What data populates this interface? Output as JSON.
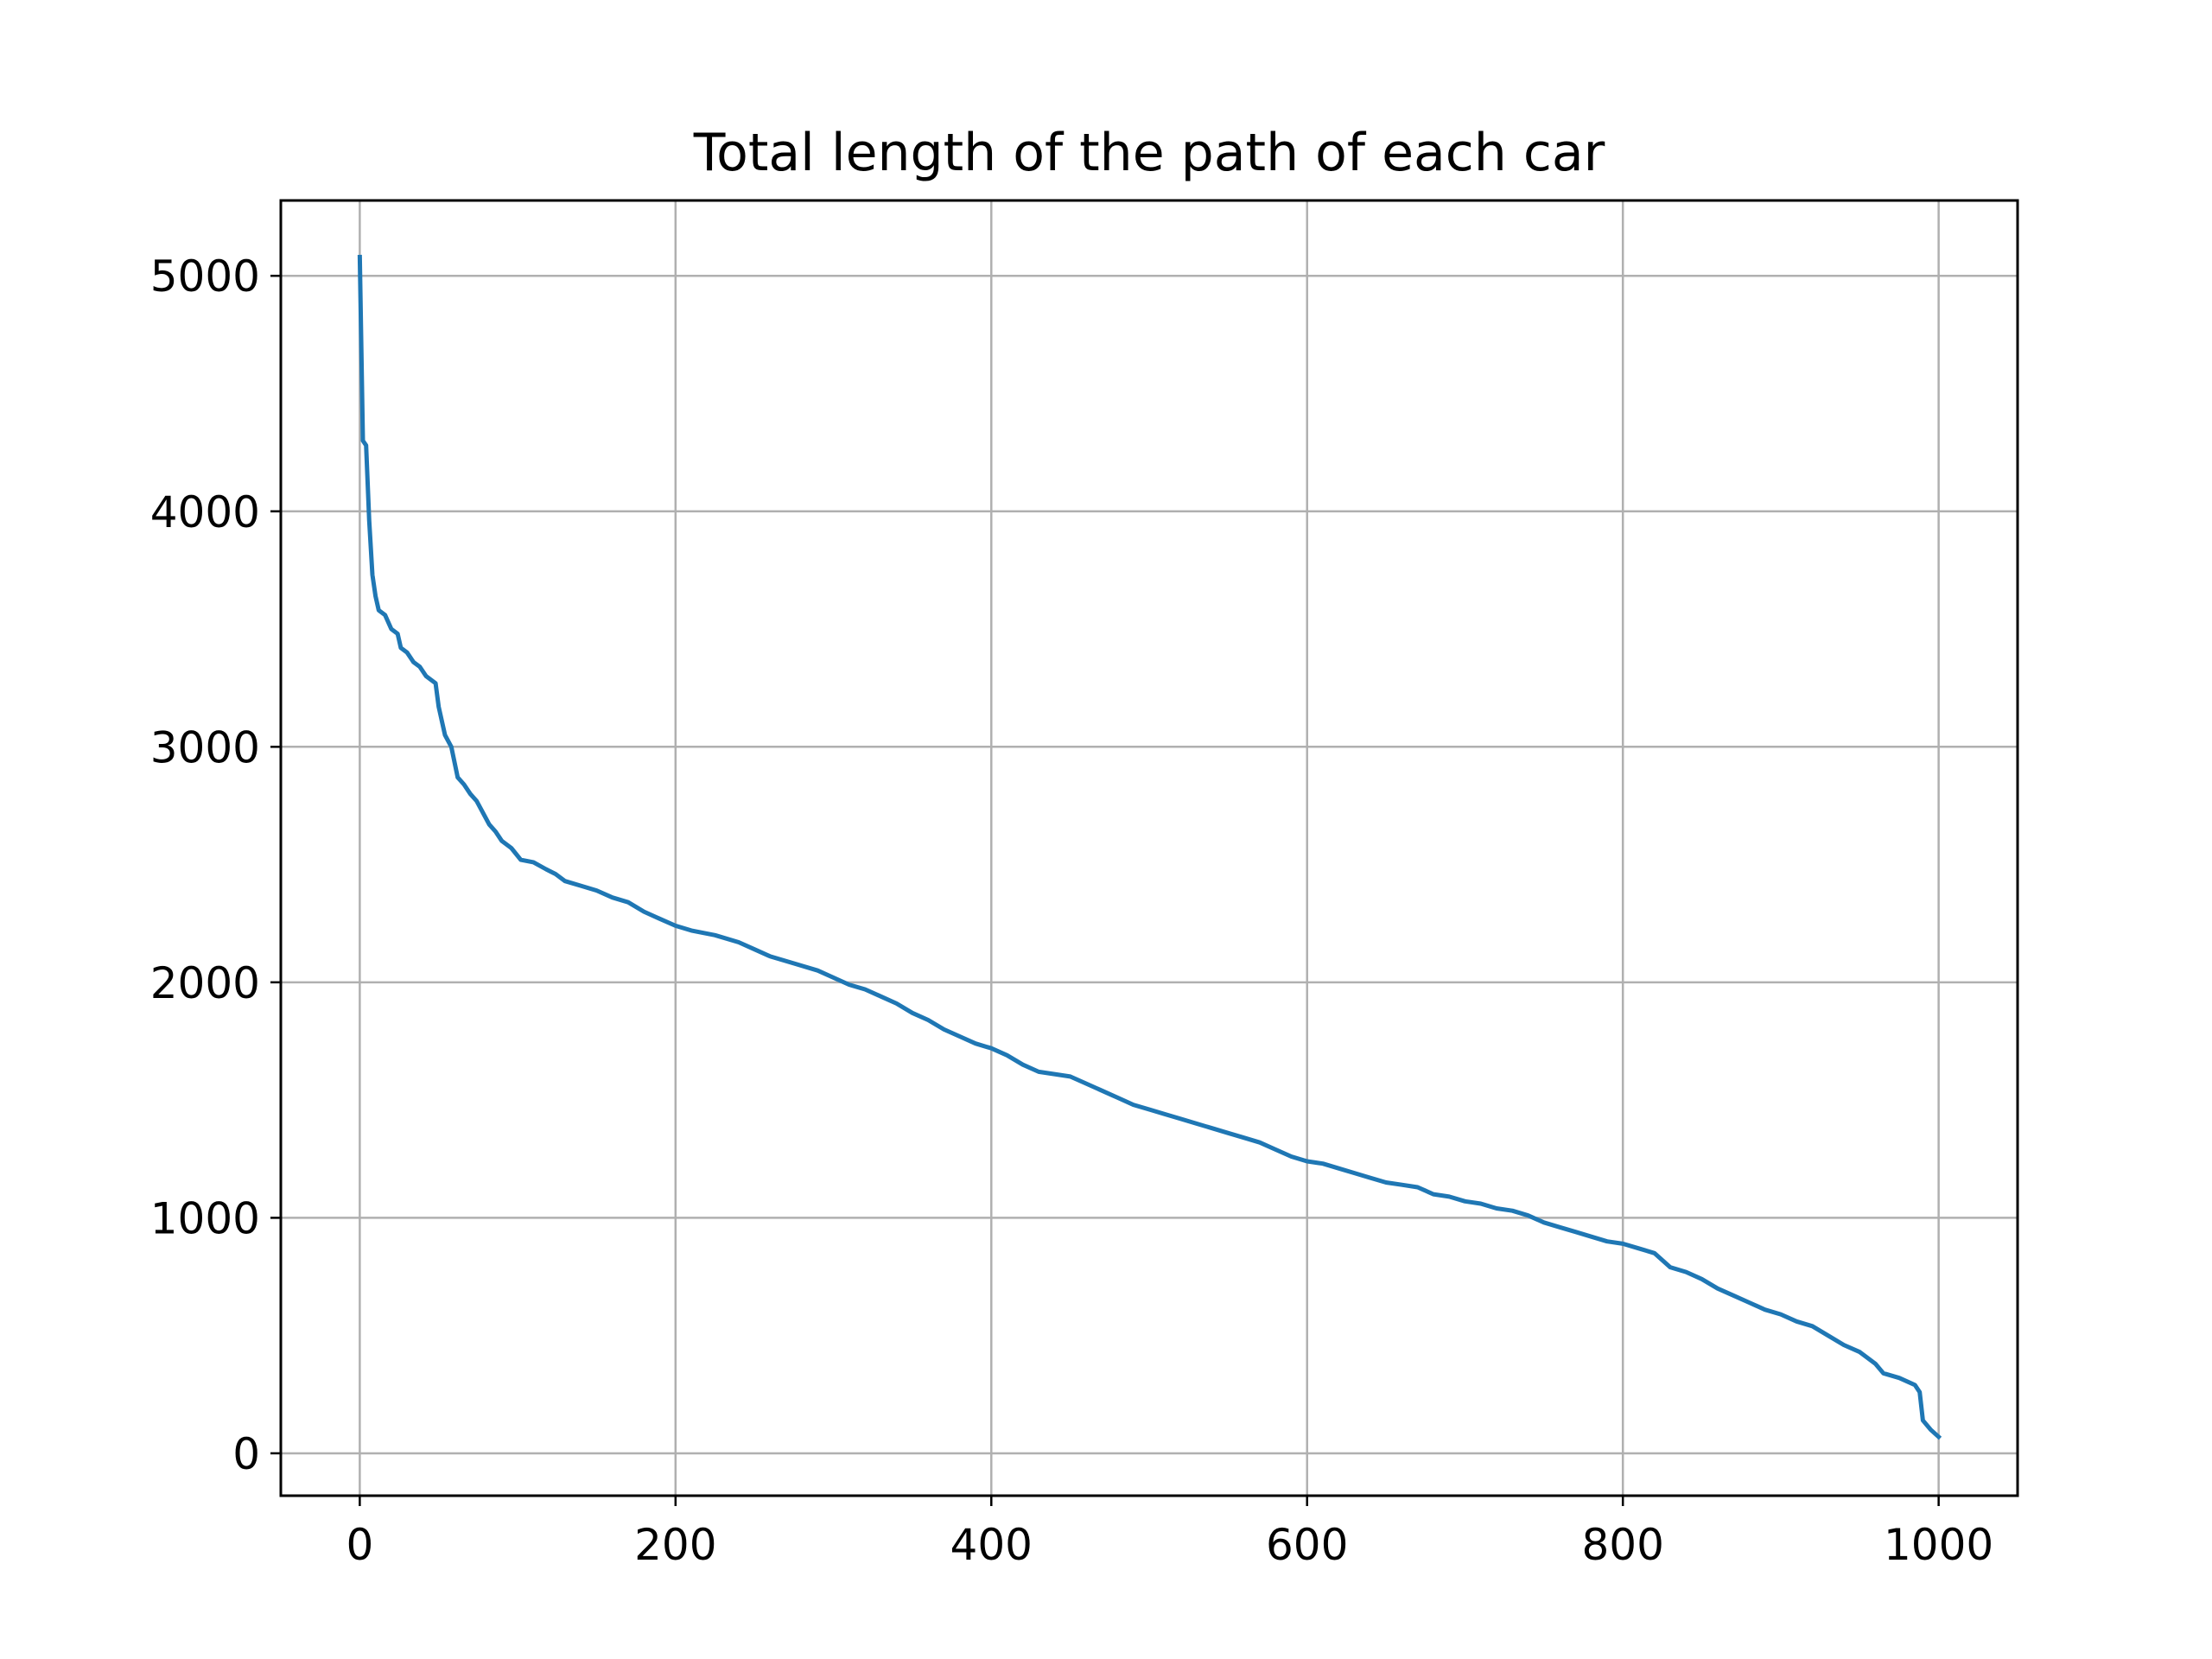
{
  "chart_data": {
    "type": "line",
    "title": "Total length of the path of each car",
    "xlabel": "",
    "ylabel": "",
    "xlim": [
      -50,
      1050
    ],
    "ylim": [
      -180,
      5320
    ],
    "grid": true,
    "xticks": [
      0,
      200,
      400,
      600,
      800,
      1000
    ],
    "yticks": [
      0,
      1000,
      2000,
      3000,
      4000,
      5000
    ],
    "series": [
      {
        "color": "#1f77b4",
        "points": [
          [
            0,
            5080
          ],
          [
            2,
            4300
          ],
          [
            4,
            4280
          ],
          [
            6,
            3960
          ],
          [
            8,
            3730
          ],
          [
            10,
            3640
          ],
          [
            12,
            3580
          ],
          [
            16,
            3560
          ],
          [
            20,
            3500
          ],
          [
            24,
            3480
          ],
          [
            26,
            3420
          ],
          [
            30,
            3400
          ],
          [
            34,
            3360
          ],
          [
            38,
            3340
          ],
          [
            42,
            3300
          ],
          [
            48,
            3270
          ],
          [
            50,
            3170
          ],
          [
            54,
            3050
          ],
          [
            58,
            3000
          ],
          [
            62,
            2870
          ],
          [
            66,
            2840
          ],
          [
            70,
            2800
          ],
          [
            74,
            2770
          ],
          [
            78,
            2720
          ],
          [
            82,
            2670
          ],
          [
            86,
            2640
          ],
          [
            90,
            2600
          ],
          [
            96,
            2570
          ],
          [
            102,
            2520
          ],
          [
            110,
            2510
          ],
          [
            118,
            2480
          ],
          [
            124,
            2460
          ],
          [
            130,
            2430
          ],
          [
            140,
            2410
          ],
          [
            150,
            2390
          ],
          [
            160,
            2360
          ],
          [
            170,
            2340
          ],
          [
            180,
            2300
          ],
          [
            190,
            2270
          ],
          [
            200,
            2240
          ],
          [
            210,
            2220
          ],
          [
            225,
            2200
          ],
          [
            240,
            2170
          ],
          [
            250,
            2140
          ],
          [
            260,
            2110
          ],
          [
            275,
            2080
          ],
          [
            290,
            2050
          ],
          [
            300,
            2020
          ],
          [
            310,
            1990
          ],
          [
            320,
            1970
          ],
          [
            330,
            1940
          ],
          [
            340,
            1910
          ],
          [
            350,
            1870
          ],
          [
            360,
            1840
          ],
          [
            370,
            1800
          ],
          [
            380,
            1770
          ],
          [
            390,
            1740
          ],
          [
            400,
            1720
          ],
          [
            410,
            1690
          ],
          [
            420,
            1650
          ],
          [
            430,
            1620
          ],
          [
            440,
            1610
          ],
          [
            450,
            1600
          ],
          [
            460,
            1570
          ],
          [
            470,
            1540
          ],
          [
            480,
            1510
          ],
          [
            490,
            1480
          ],
          [
            500,
            1460
          ],
          [
            510,
            1440
          ],
          [
            520,
            1420
          ],
          [
            530,
            1400
          ],
          [
            540,
            1380
          ],
          [
            550,
            1360
          ],
          [
            560,
            1340
          ],
          [
            570,
            1320
          ],
          [
            580,
            1290
          ],
          [
            590,
            1260
          ],
          [
            600,
            1240
          ],
          [
            610,
            1230
          ],
          [
            620,
            1210
          ],
          [
            630,
            1190
          ],
          [
            640,
            1170
          ],
          [
            650,
            1150
          ],
          [
            660,
            1140
          ],
          [
            670,
            1130
          ],
          [
            680,
            1100
          ],
          [
            690,
            1090
          ],
          [
            700,
            1070
          ],
          [
            710,
            1060
          ],
          [
            720,
            1040
          ],
          [
            730,
            1030
          ],
          [
            740,
            1010
          ],
          [
            750,
            980
          ],
          [
            760,
            960
          ],
          [
            770,
            940
          ],
          [
            780,
            920
          ],
          [
            790,
            900
          ],
          [
            800,
            890
          ],
          [
            810,
            870
          ],
          [
            820,
            850
          ],
          [
            830,
            790
          ],
          [
            840,
            770
          ],
          [
            850,
            740
          ],
          [
            860,
            700
          ],
          [
            870,
            670
          ],
          [
            880,
            640
          ],
          [
            890,
            610
          ],
          [
            900,
            590
          ],
          [
            910,
            560
          ],
          [
            920,
            540
          ],
          [
            930,
            500
          ],
          [
            940,
            460
          ],
          [
            950,
            430
          ],
          [
            960,
            380
          ],
          [
            965,
            340
          ],
          [
            975,
            320
          ],
          [
            985,
            290
          ],
          [
            988,
            260
          ],
          [
            990,
            140
          ],
          [
            995,
            100
          ],
          [
            1000,
            70
          ]
        ]
      }
    ]
  }
}
